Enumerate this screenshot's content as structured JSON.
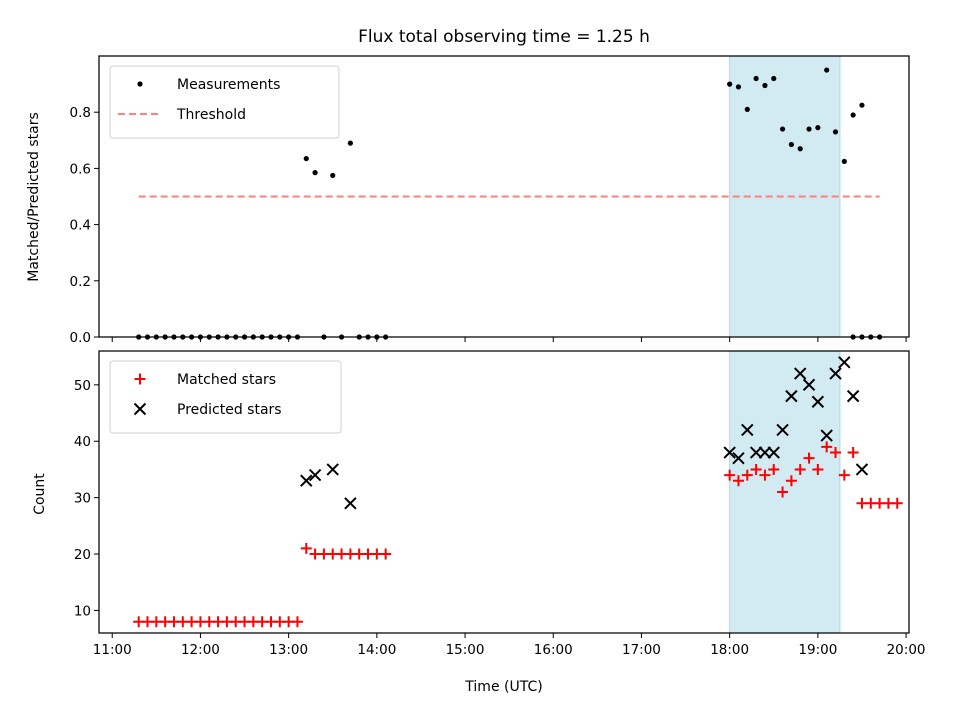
{
  "chart_data": {
    "title": "Flux total observing time = 1.25 h",
    "xlabel": "Time (UTC)",
    "x_range": [
      "10:51",
      "20:02"
    ],
    "x_ticks": [
      "11:00",
      "12:00",
      "13:00",
      "14:00",
      "15:00",
      "16:00",
      "17:00",
      "18:00",
      "19:00",
      "20:00"
    ],
    "shaded_span": {
      "start": "18:00",
      "end": "19:15",
      "color": "#add8e6"
    },
    "panels": [
      {
        "type": "scatter",
        "ylabel": "Matched/Predicted stars",
        "ylim": [
          0,
          1.0
        ],
        "y_ticks": [
          "0.0",
          "0.2",
          "0.4",
          "0.6",
          "0.8"
        ],
        "legend": {
          "position": "top-left"
        },
        "series": [
          {
            "name": "Measurements",
            "marker": "dot",
            "color": "#000000",
            "points": [
              [
                "11:18",
                0
              ],
              [
                "11:24",
                0
              ],
              [
                "11:30",
                0
              ],
              [
                "11:36",
                0
              ],
              [
                "11:42",
                0
              ],
              [
                "11:48",
                0
              ],
              [
                "11:54",
                0
              ],
              [
                "12:00",
                0
              ],
              [
                "12:06",
                0
              ],
              [
                "12:12",
                0
              ],
              [
                "12:18",
                0
              ],
              [
                "12:24",
                0
              ],
              [
                "12:30",
                0
              ],
              [
                "12:36",
                0
              ],
              [
                "12:42",
                0
              ],
              [
                "12:48",
                0
              ],
              [
                "12:54",
                0
              ],
              [
                "13:00",
                0
              ],
              [
                "13:06",
                0
              ],
              [
                "13:12",
                0.635
              ],
              [
                "13:18",
                0.585
              ],
              [
                "13:24",
                0
              ],
              [
                "13:30",
                0.575
              ],
              [
                "13:36",
                0
              ],
              [
                "13:42",
                0.69
              ],
              [
                "13:48",
                0
              ],
              [
                "13:54",
                0
              ],
              [
                "14:00",
                0
              ],
              [
                "14:06",
                0
              ],
              [
                "18:00",
                0.9
              ],
              [
                "18:06",
                0.89
              ],
              [
                "18:12",
                0.81
              ],
              [
                "18:18",
                0.92
              ],
              [
                "18:24",
                0.895
              ],
              [
                "18:30",
                0.92
              ],
              [
                "18:36",
                0.74
              ],
              [
                "18:42",
                0.685
              ],
              [
                "18:48",
                0.67
              ],
              [
                "18:54",
                0.74
              ],
              [
                "19:00",
                0.745
              ],
              [
                "19:06",
                0.95
              ],
              [
                "19:12",
                0.73
              ],
              [
                "19:18",
                0.625
              ],
              [
                "19:24",
                0.79
              ],
              [
                "19:30",
                0.825
              ],
              [
                "19:24",
                0
              ],
              [
                "19:30",
                0
              ],
              [
                "19:36",
                0
              ],
              [
                "19:42",
                0
              ]
            ]
          },
          {
            "name": "Threshold",
            "line": "dashed",
            "color": "#ff7f7f",
            "points": [
              [
                "11:18",
                0.5
              ],
              [
                "19:42",
                0.5
              ]
            ]
          }
        ]
      },
      {
        "type": "scatter",
        "ylabel": "Count",
        "ylim": [
          6,
          56
        ],
        "y_ticks": [
          "10",
          "20",
          "30",
          "40",
          "50"
        ],
        "legend": {
          "position": "top-left"
        },
        "series": [
          {
            "name": "Matched stars",
            "marker": "plus",
            "color": "#ff0000",
            "points": [
              [
                "11:18",
                8
              ],
              [
                "11:24",
                8
              ],
              [
                "11:30",
                8
              ],
              [
                "11:36",
                8
              ],
              [
                "11:42",
                8
              ],
              [
                "11:48",
                8
              ],
              [
                "11:54",
                8
              ],
              [
                "12:00",
                8
              ],
              [
                "12:06",
                8
              ],
              [
                "12:12",
                8
              ],
              [
                "12:18",
                8
              ],
              [
                "12:24",
                8
              ],
              [
                "12:30",
                8
              ],
              [
                "12:36",
                8
              ],
              [
                "12:42",
                8
              ],
              [
                "12:48",
                8
              ],
              [
                "12:54",
                8
              ],
              [
                "13:00",
                8
              ],
              [
                "13:06",
                8
              ],
              [
                "13:12",
                21
              ],
              [
                "13:18",
                20
              ],
              [
                "13:24",
                20
              ],
              [
                "13:30",
                20
              ],
              [
                "13:36",
                20
              ],
              [
                "13:42",
                20
              ],
              [
                "13:48",
                20
              ],
              [
                "13:54",
                20
              ],
              [
                "14:00",
                20
              ],
              [
                "14:06",
                20
              ],
              [
                "18:00",
                34
              ],
              [
                "18:06",
                33
              ],
              [
                "18:12",
                34
              ],
              [
                "18:18",
                35
              ],
              [
                "18:24",
                34
              ],
              [
                "18:30",
                35
              ],
              [
                "18:36",
                31
              ],
              [
                "18:42",
                33
              ],
              [
                "18:48",
                35
              ],
              [
                "18:54",
                37
              ],
              [
                "19:00",
                35
              ],
              [
                "19:06",
                39
              ],
              [
                "19:12",
                38
              ],
              [
                "19:18",
                34
              ],
              [
                "19:24",
                38
              ],
              [
                "19:30",
                29
              ],
              [
                "19:36",
                29
              ],
              [
                "19:42",
                29
              ],
              [
                "19:48",
                29
              ],
              [
                "19:54",
                29
              ]
            ]
          },
          {
            "name": "Predicted stars",
            "marker": "x",
            "color": "#000000",
            "points": [
              [
                "13:12",
                33
              ],
              [
                "13:18",
                34
              ],
              [
                "13:30",
                35
              ],
              [
                "13:42",
                29
              ],
              [
                "18:00",
                38
              ],
              [
                "18:06",
                37
              ],
              [
                "18:12",
                42
              ],
              [
                "18:18",
                38
              ],
              [
                "18:24",
                38
              ],
              [
                "18:30",
                38
              ],
              [
                "18:36",
                42
              ],
              [
                "18:42",
                48
              ],
              [
                "18:48",
                52
              ],
              [
                "18:54",
                50
              ],
              [
                "19:00",
                47
              ],
              [
                "19:06",
                41
              ],
              [
                "19:12",
                52
              ],
              [
                "19:18",
                54
              ],
              [
                "19:24",
                48
              ],
              [
                "19:30",
                35
              ]
            ]
          }
        ]
      }
    ]
  }
}
